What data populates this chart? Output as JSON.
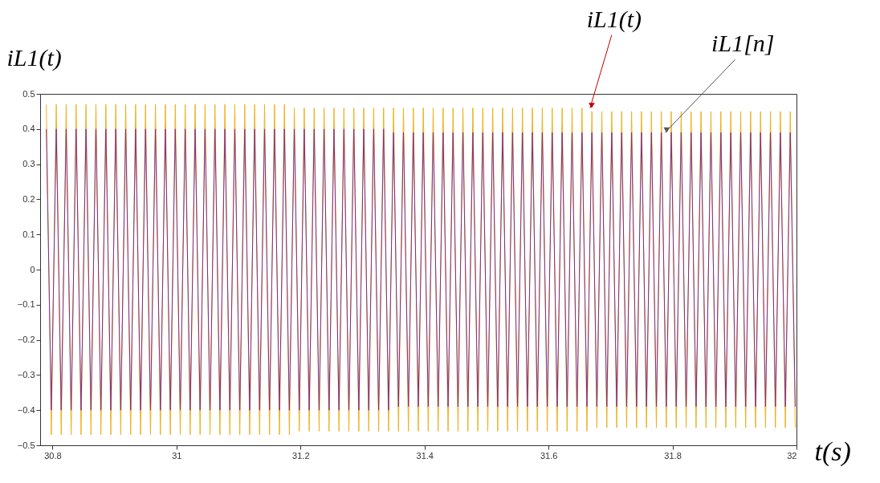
{
  "chart_data": {
    "type": "line",
    "ylabel": "iL1(t)",
    "xlabel": "t(s)",
    "xlim": [
      30.78,
      32
    ],
    "xticks": [
      30.8,
      31,
      31.2,
      31.4,
      31.6,
      31.8,
      32
    ],
    "ylim": [
      -0.5,
      0.5
    ],
    "yticks": [
      -0.5,
      -0.4,
      -0.3,
      -0.2,
      -0.1,
      0,
      0.1,
      0.2,
      0.3,
      0.4,
      0.5
    ],
    "grid": false,
    "legend": false,
    "marker": "none",
    "line_style": "solid",
    "x": [
      30.79,
      30.798,
      30.806,
      30.814,
      30.822,
      30.83,
      30.838,
      30.846,
      30.854,
      30.862,
      30.87,
      30.878,
      30.886,
      30.894,
      30.902,
      30.91,
      30.918,
      30.926,
      30.934,
      30.942,
      30.95,
      30.958,
      30.966,
      30.974,
      30.982,
      30.99,
      30.998,
      31.006,
      31.014,
      31.022,
      31.03,
      31.038,
      31.046,
      31.054,
      31.062,
      31.07,
      31.078,
      31.086,
      31.094,
      31.102,
      31.11,
      31.118,
      31.126,
      31.134,
      31.142,
      31.15,
      31.158,
      31.166,
      31.174,
      31.182,
      31.19,
      31.198,
      31.206,
      31.214,
      31.222,
      31.23,
      31.238,
      31.246,
      31.254,
      31.262,
      31.27,
      31.278,
      31.286,
      31.294,
      31.302,
      31.31,
      31.318,
      31.326,
      31.334,
      31.342,
      31.35,
      31.358,
      31.366,
      31.374,
      31.382,
      31.39,
      31.398,
      31.406,
      31.414,
      31.422,
      31.43,
      31.438,
      31.446,
      31.454,
      31.462,
      31.47,
      31.478,
      31.486,
      31.494,
      31.502,
      31.51,
      31.518,
      31.526,
      31.534,
      31.542,
      31.55,
      31.558,
      31.566,
      31.574,
      31.582,
      31.59,
      31.598,
      31.606,
      31.614,
      31.622,
      31.63,
      31.638,
      31.646,
      31.654,
      31.662,
      31.67,
      31.678,
      31.686,
      31.694,
      31.702,
      31.71,
      31.718,
      31.726,
      31.734,
      31.742,
      31.75,
      31.758,
      31.766,
      31.774,
      31.782,
      31.79,
      31.798,
      31.806,
      31.814,
      31.822,
      31.83,
      31.838,
      31.846,
      31.854,
      31.862,
      31.87,
      31.878,
      31.886,
      31.894,
      31.902,
      31.91,
      31.918,
      31.926,
      31.934,
      31.942,
      31.95,
      31.958,
      31.966,
      31.974,
      31.982,
      31.99,
      31.998
    ],
    "series": [
      {
        "color": "#edb120",
        "values": [
          0.47,
          -0.47,
          0.47,
          -0.47,
          0.47,
          -0.47,
          0.47,
          -0.47,
          0.47,
          -0.47,
          0.47,
          -0.47,
          0.47,
          -0.47,
          0.47,
          -0.47,
          0.47,
          -0.47,
          0.47,
          -0.47,
          0.47,
          -0.47,
          0.47,
          -0.47,
          0.47,
          -0.47,
          0.47,
          -0.47,
          0.47,
          -0.47,
          0.47,
          -0.47,
          0.47,
          -0.47,
          0.47,
          -0.47,
          0.47,
          -0.47,
          0.47,
          -0.47,
          0.47,
          -0.47,
          0.47,
          -0.47,
          0.47,
          -0.47,
          0.47,
          -0.47,
          0.47,
          -0.47,
          0.46,
          -0.46,
          0.46,
          -0.46,
          0.46,
          -0.46,
          0.46,
          -0.46,
          0.46,
          -0.46,
          0.46,
          -0.46,
          0.46,
          -0.46,
          0.46,
          -0.46,
          0.46,
          -0.46,
          0.46,
          -0.46,
          0.46,
          -0.46,
          0.46,
          -0.46,
          0.46,
          -0.46,
          0.46,
          -0.46,
          0.46,
          -0.46,
          0.46,
          -0.46,
          0.46,
          -0.46,
          0.46,
          -0.46,
          0.46,
          -0.46,
          0.46,
          -0.46,
          0.46,
          -0.46,
          0.46,
          -0.46,
          0.46,
          -0.46,
          0.46,
          -0.46,
          0.46,
          -0.46,
          0.46,
          -0.46,
          0.46,
          -0.46,
          0.46,
          -0.46,
          0.46,
          -0.46,
          0.46,
          -0.46,
          0.45,
          -0.45,
          0.45,
          -0.45,
          0.45,
          -0.45,
          0.45,
          -0.45,
          0.45,
          -0.45,
          0.45,
          -0.45,
          0.45,
          -0.45,
          0.45,
          -0.45,
          0.45,
          -0.45,
          0.45,
          -0.45,
          0.45,
          -0.45,
          0.45,
          -0.45,
          0.45,
          -0.45,
          0.45,
          -0.45,
          0.45,
          -0.45,
          0.45,
          -0.45,
          0.45,
          -0.45,
          0.45,
          -0.45,
          0.45,
          -0.45,
          0.45,
          -0.45,
          0.45,
          -0.45
        ]
      },
      {
        "color": "#7e2f8e",
        "values": [
          0.4,
          -0.4,
          0.4,
          -0.4,
          0.4,
          -0.4,
          0.4,
          -0.4,
          0.4,
          -0.4,
          0.4,
          -0.4,
          0.4,
          -0.4,
          0.4,
          -0.4,
          0.4,
          -0.4,
          0.4,
          -0.4,
          0.4,
          -0.4,
          0.4,
          -0.4,
          0.4,
          -0.4,
          0.4,
          -0.4,
          0.4,
          -0.4,
          0.4,
          -0.4,
          0.4,
          -0.4,
          0.4,
          -0.4,
          0.4,
          -0.4,
          0.4,
          -0.4,
          0.4,
          -0.4,
          0.4,
          -0.4,
          0.4,
          -0.4,
          0.4,
          -0.4,
          0.4,
          -0.4,
          0.4,
          -0.4,
          0.4,
          -0.4,
          0.4,
          -0.4,
          0.4,
          -0.4,
          0.4,
          -0.4,
          0.4,
          -0.4,
          0.4,
          -0.4,
          0.4,
          -0.4,
          0.4,
          -0.4,
          0.4,
          -0.4,
          0.39,
          -0.39,
          0.39,
          -0.39,
          0.39,
          -0.39,
          0.39,
          -0.39,
          0.39,
          -0.39,
          0.39,
          -0.39,
          0.39,
          -0.39,
          0.39,
          -0.39,
          0.39,
          -0.39,
          0.39,
          -0.39,
          0.39,
          -0.39,
          0.39,
          -0.39,
          0.39,
          -0.39,
          0.39,
          -0.39,
          0.39,
          -0.39,
          0.39,
          -0.39,
          0.39,
          -0.39,
          0.39,
          -0.39,
          0.39,
          -0.39,
          0.39,
          -0.39,
          0.39,
          -0.39,
          0.39,
          -0.39,
          0.39,
          -0.39,
          0.39,
          -0.39,
          0.39,
          -0.39,
          0.39,
          -0.39,
          0.39,
          -0.39,
          0.39,
          -0.39,
          0.39,
          -0.39,
          0.39,
          -0.39,
          0.39,
          -0.39,
          0.39,
          -0.39,
          0.39,
          -0.39,
          0.39,
          -0.39,
          0.39,
          -0.39,
          0.39,
          -0.39,
          0.39,
          -0.39,
          0.39,
          -0.39,
          0.39,
          -0.39,
          0.39,
          -0.39,
          0.39,
          -0.39
        ]
      }
    ],
    "annotations": [
      {
        "text": "iL1(t)",
        "x": 31.667,
        "y": 0.46
      },
      {
        "text": "iL1[n]",
        "x": 31.788,
        "y": 0.39
      }
    ]
  }
}
